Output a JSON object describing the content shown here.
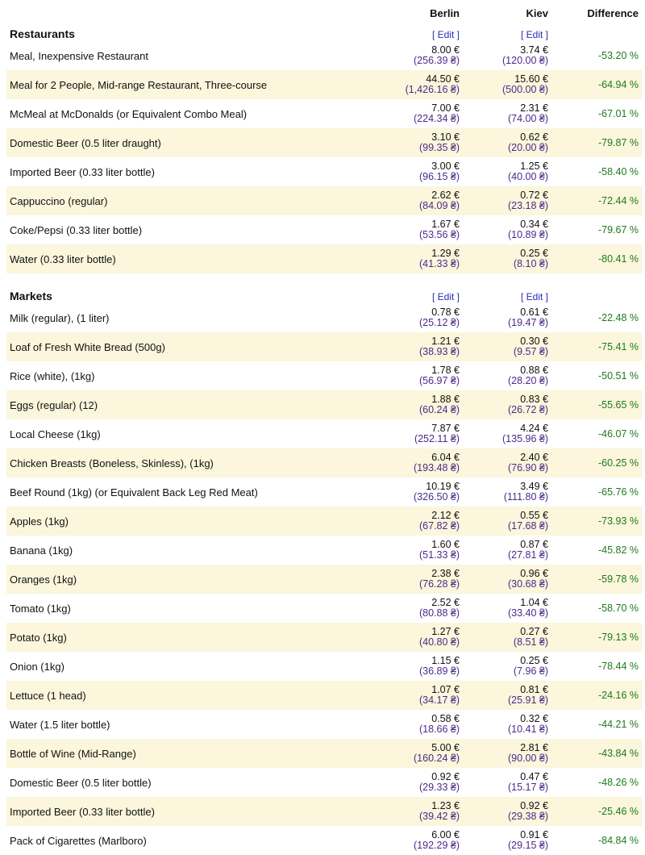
{
  "header": {
    "berlin": "Berlin",
    "kiev": "Kiev",
    "difference": "Difference"
  },
  "edit_label": "[ Edit ]",
  "sections": [
    {
      "title": "Restaurants",
      "rows": [
        {
          "item": "Meal, Inexpensive Restaurant",
          "berlin_eur": "8.00 €",
          "berlin_uah": "(256.39 ₴)",
          "kiev_eur": "3.74 €",
          "kiev_uah": "(120.00 ₴)",
          "diff": "-53.20 %"
        },
        {
          "item": "Meal for 2 People, Mid-range Restaurant, Three-course",
          "berlin_eur": "44.50 €",
          "berlin_uah": "(1,426.16 ₴)",
          "kiev_eur": "15.60 €",
          "kiev_uah": "(500.00 ₴)",
          "diff": "-64.94 %"
        },
        {
          "item": "McMeal at McDonalds (or Equivalent Combo Meal)",
          "berlin_eur": "7.00 €",
          "berlin_uah": "(224.34 ₴)",
          "kiev_eur": "2.31 €",
          "kiev_uah": "(74.00 ₴)",
          "diff": "-67.01 %"
        },
        {
          "item": "Domestic Beer (0.5 liter draught)",
          "berlin_eur": "3.10 €",
          "berlin_uah": "(99.35 ₴)",
          "kiev_eur": "0.62 €",
          "kiev_uah": "(20.00 ₴)",
          "diff": "-79.87 %"
        },
        {
          "item": "Imported Beer (0.33 liter bottle)",
          "berlin_eur": "3.00 €",
          "berlin_uah": "(96.15 ₴)",
          "kiev_eur": "1.25 €",
          "kiev_uah": "(40.00 ₴)",
          "diff": "-58.40 %"
        },
        {
          "item": "Cappuccino (regular)",
          "berlin_eur": "2.62 €",
          "berlin_uah": "(84.09 ₴)",
          "kiev_eur": "0.72 €",
          "kiev_uah": "(23.18 ₴)",
          "diff": "-72.44 %"
        },
        {
          "item": "Coke/Pepsi (0.33 liter bottle)",
          "berlin_eur": "1.67 €",
          "berlin_uah": "(53.56 ₴)",
          "kiev_eur": "0.34 €",
          "kiev_uah": "(10.89 ₴)",
          "diff": "-79.67 %"
        },
        {
          "item": "Water (0.33 liter bottle)",
          "berlin_eur": "1.29 €",
          "berlin_uah": "(41.33 ₴)",
          "kiev_eur": "0.25 €",
          "kiev_uah": "(8.10 ₴)",
          "diff": "-80.41 %"
        }
      ]
    },
    {
      "title": "Markets",
      "rows": [
        {
          "item": "Milk (regular), (1 liter)",
          "berlin_eur": "0.78 €",
          "berlin_uah": "(25.12 ₴)",
          "kiev_eur": "0.61 €",
          "kiev_uah": "(19.47 ₴)",
          "diff": "-22.48 %"
        },
        {
          "item": "Loaf of Fresh White Bread (500g)",
          "berlin_eur": "1.21 €",
          "berlin_uah": "(38.93 ₴)",
          "kiev_eur": "0.30 €",
          "kiev_uah": "(9.57 ₴)",
          "diff": "-75.41 %"
        },
        {
          "item": "Rice (white), (1kg)",
          "berlin_eur": "1.78 €",
          "berlin_uah": "(56.97 ₴)",
          "kiev_eur": "0.88 €",
          "kiev_uah": "(28.20 ₴)",
          "diff": "-50.51 %"
        },
        {
          "item": "Eggs (regular) (12)",
          "berlin_eur": "1.88 €",
          "berlin_uah": "(60.24 ₴)",
          "kiev_eur": "0.83 €",
          "kiev_uah": "(26.72 ₴)",
          "diff": "-55.65 %"
        },
        {
          "item": "Local Cheese (1kg)",
          "berlin_eur": "7.87 €",
          "berlin_uah": "(252.11 ₴)",
          "kiev_eur": "4.24 €",
          "kiev_uah": "(135.96 ₴)",
          "diff": "-46.07 %"
        },
        {
          "item": "Chicken Breasts (Boneless, Skinless), (1kg)",
          "berlin_eur": "6.04 €",
          "berlin_uah": "(193.48 ₴)",
          "kiev_eur": "2.40 €",
          "kiev_uah": "(76.90 ₴)",
          "diff": "-60.25 %"
        },
        {
          "item": "Beef Round (1kg) (or Equivalent Back Leg Red Meat)",
          "berlin_eur": "10.19 €",
          "berlin_uah": "(326.50 ₴)",
          "kiev_eur": "3.49 €",
          "kiev_uah": "(111.80 ₴)",
          "diff": "-65.76 %"
        },
        {
          "item": "Apples (1kg)",
          "berlin_eur": "2.12 €",
          "berlin_uah": "(67.82 ₴)",
          "kiev_eur": "0.55 €",
          "kiev_uah": "(17.68 ₴)",
          "diff": "-73.93 %"
        },
        {
          "item": "Banana (1kg)",
          "berlin_eur": "1.60 €",
          "berlin_uah": "(51.33 ₴)",
          "kiev_eur": "0.87 €",
          "kiev_uah": "(27.81 ₴)",
          "diff": "-45.82 %"
        },
        {
          "item": "Oranges (1kg)",
          "berlin_eur": "2.38 €",
          "berlin_uah": "(76.28 ₴)",
          "kiev_eur": "0.96 €",
          "kiev_uah": "(30.68 ₴)",
          "diff": "-59.78 %"
        },
        {
          "item": "Tomato (1kg)",
          "berlin_eur": "2.52 €",
          "berlin_uah": "(80.88 ₴)",
          "kiev_eur": "1.04 €",
          "kiev_uah": "(33.40 ₴)",
          "diff": "-58.70 %"
        },
        {
          "item": "Potato (1kg)",
          "berlin_eur": "1.27 €",
          "berlin_uah": "(40.80 ₴)",
          "kiev_eur": "0.27 €",
          "kiev_uah": "(8.51 ₴)",
          "diff": "-79.13 %"
        },
        {
          "item": "Onion (1kg)",
          "berlin_eur": "1.15 €",
          "berlin_uah": "(36.89 ₴)",
          "kiev_eur": "0.25 €",
          "kiev_uah": "(7.96 ₴)",
          "diff": "-78.44 %"
        },
        {
          "item": "Lettuce (1 head)",
          "berlin_eur": "1.07 €",
          "berlin_uah": "(34.17 ₴)",
          "kiev_eur": "0.81 €",
          "kiev_uah": "(25.91 ₴)",
          "diff": "-24.16 %"
        },
        {
          "item": "Water (1.5 liter bottle)",
          "berlin_eur": "0.58 €",
          "berlin_uah": "(18.66 ₴)",
          "kiev_eur": "0.32 €",
          "kiev_uah": "(10.41 ₴)",
          "diff": "-44.21 %"
        },
        {
          "item": "Bottle of Wine (Mid-Range)",
          "berlin_eur": "5.00 €",
          "berlin_uah": "(160.24 ₴)",
          "kiev_eur": "2.81 €",
          "kiev_uah": "(90.00 ₴)",
          "diff": "-43.84 %"
        },
        {
          "item": "Domestic Beer (0.5 liter bottle)",
          "berlin_eur": "0.92 €",
          "berlin_uah": "(29.33 ₴)",
          "kiev_eur": "0.47 €",
          "kiev_uah": "(15.17 ₴)",
          "diff": "-48.26 %"
        },
        {
          "item": "Imported Beer (0.33 liter bottle)",
          "berlin_eur": "1.23 €",
          "berlin_uah": "(39.42 ₴)",
          "kiev_eur": "0.92 €",
          "kiev_uah": "(29.38 ₴)",
          "diff": "-25.46 %"
        },
        {
          "item": "Pack of Cigarettes (Marlboro)",
          "berlin_eur": "6.00 €",
          "berlin_uah": "(192.29 ₴)",
          "kiev_eur": "0.91 €",
          "kiev_uah": "(29.15 ₴)",
          "diff": "-84.84 %"
        }
      ]
    }
  ]
}
